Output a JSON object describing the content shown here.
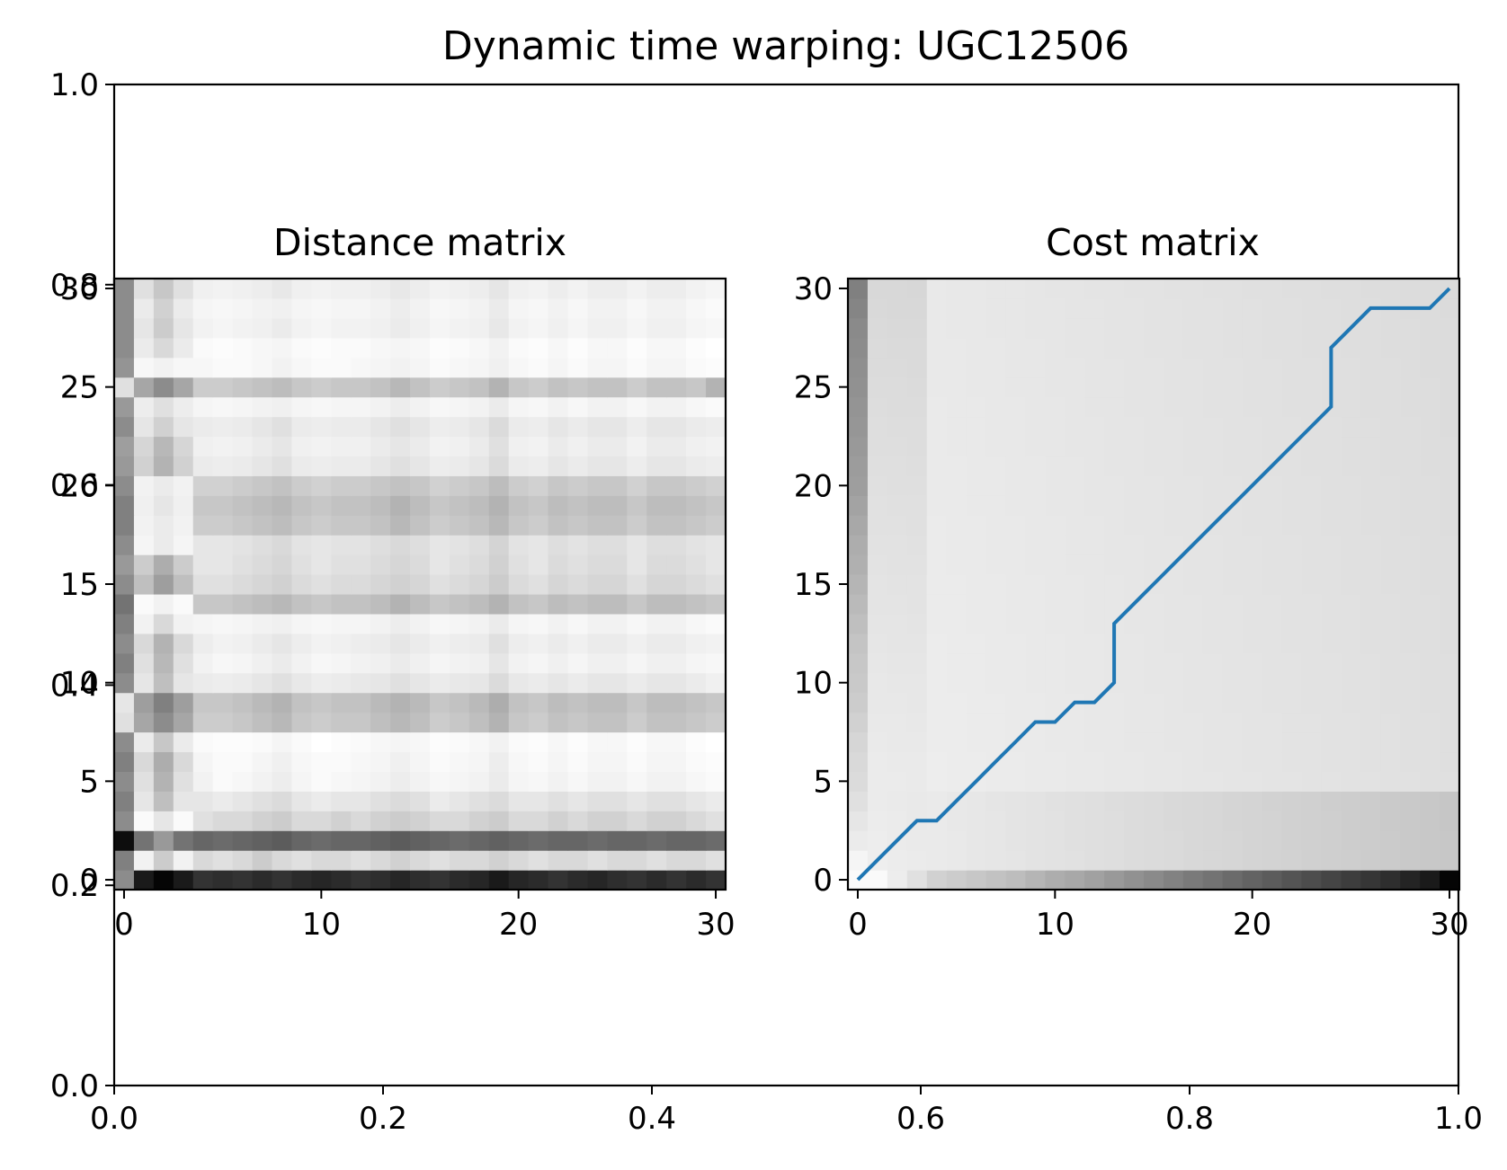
{
  "title": "Dynamic time warping: UGC12506",
  "colors": {
    "background": "#ffffff",
    "axis": "#000000",
    "path": "#1f77b4"
  },
  "chart_data": [
    {
      "id": "outer",
      "type": "line",
      "title": "Dynamic time warping: UGC12506",
      "xlim": [
        0,
        1
      ],
      "ylim": [
        0,
        1
      ],
      "xticks": [
        "0.0",
        "0.2",
        "0.4",
        "0.6",
        "0.8",
        "1.0"
      ],
      "yticks": [
        "0.0",
        "0.2",
        "0.4",
        "0.6",
        "0.8",
        "1.0"
      ],
      "series": []
    },
    {
      "id": "distance",
      "type": "heatmap",
      "title": "Distance matrix",
      "colormap": "gray",
      "size": 31,
      "xlim": [
        -0.5,
        30.5
      ],
      "ylim": [
        -0.5,
        30.5
      ],
      "xticks": [
        "0",
        "10",
        "20",
        "30"
      ],
      "yticks": [
        "0",
        "5",
        "10",
        "15",
        "20",
        "25",
        "30"
      ],
      "rows": [
        [
          0.55,
          0.1,
          0.02,
          0.1,
          0.2,
          0.18,
          0.2,
          0.17,
          0.2,
          0.17,
          0.15,
          0.17,
          0.2,
          0.18,
          0.15,
          0.18,
          0.2,
          0.17,
          0.15,
          0.1,
          0.15,
          0.17,
          0.2,
          0.17,
          0.15,
          0.18,
          0.2,
          0.17,
          0.2,
          0.17,
          0.2
        ],
        [
          0.5,
          0.95,
          0.8,
          0.95,
          0.85,
          0.88,
          0.85,
          0.8,
          0.85,
          0.88,
          0.85,
          0.85,
          0.88,
          0.85,
          0.82,
          0.85,
          0.88,
          0.85,
          0.85,
          0.82,
          0.85,
          0.88,
          0.85,
          0.85,
          0.88,
          0.85,
          0.85,
          0.88,
          0.85,
          0.85,
          0.88
        ],
        [
          0.05,
          0.45,
          0.6,
          0.45,
          0.4,
          0.42,
          0.4,
          0.38,
          0.36,
          0.4,
          0.42,
          0.4,
          0.4,
          0.38,
          0.36,
          0.38,
          0.4,
          0.42,
          0.4,
          0.38,
          0.4,
          0.42,
          0.4,
          0.4,
          0.42,
          0.4,
          0.4,
          0.42,
          0.4,
          0.4,
          0.42
        ],
        [
          0.55,
          0.98,
          0.9,
          0.98,
          0.88,
          0.85,
          0.85,
          0.82,
          0.8,
          0.85,
          0.85,
          0.82,
          0.85,
          0.82,
          0.8,
          0.82,
          0.85,
          0.85,
          0.82,
          0.8,
          0.85,
          0.85,
          0.82,
          0.85,
          0.82,
          0.82,
          0.85,
          0.82,
          0.82,
          0.85,
          0.88
        ],
        [
          0.5,
          0.9,
          0.75,
          0.9,
          0.9,
          0.92,
          0.9,
          0.88,
          0.86,
          0.9,
          0.92,
          0.9,
          0.9,
          0.88,
          0.86,
          0.88,
          0.92,
          0.9,
          0.88,
          0.86,
          0.9,
          0.9,
          0.88,
          0.9,
          0.88,
          0.88,
          0.9,
          0.88,
          0.88,
          0.9,
          0.92
        ],
        [
          0.55,
          0.88,
          0.7,
          0.88,
          0.95,
          0.98,
          0.97,
          0.95,
          0.93,
          0.96,
          0.98,
          0.97,
          0.96,
          0.95,
          0.93,
          0.95,
          0.97,
          0.96,
          0.95,
          0.92,
          0.96,
          0.97,
          0.95,
          0.97,
          0.95,
          0.95,
          0.97,
          0.95,
          0.95,
          0.97,
          0.98
        ],
        [
          0.5,
          0.85,
          0.68,
          0.85,
          0.96,
          0.98,
          0.98,
          0.96,
          0.94,
          0.97,
          0.98,
          0.98,
          0.97,
          0.96,
          0.94,
          0.96,
          0.98,
          0.97,
          0.96,
          0.93,
          0.97,
          0.98,
          0.96,
          0.98,
          0.96,
          0.96,
          0.98,
          0.96,
          0.96,
          0.98,
          0.99
        ],
        [
          0.55,
          0.92,
          0.78,
          0.92,
          0.98,
          0.99,
          0.99,
          0.98,
          0.96,
          0.98,
          1.0,
          0.99,
          0.98,
          0.97,
          0.96,
          0.97,
          0.99,
          0.98,
          0.97,
          0.95,
          0.98,
          0.99,
          0.97,
          0.99,
          0.97,
          0.97,
          0.99,
          0.97,
          0.97,
          0.99,
          1.0
        ],
        [
          0.88,
          0.65,
          0.55,
          0.65,
          0.8,
          0.8,
          0.78,
          0.75,
          0.72,
          0.78,
          0.8,
          0.78,
          0.78,
          0.75,
          0.72,
          0.75,
          0.8,
          0.78,
          0.75,
          0.7,
          0.78,
          0.8,
          0.76,
          0.78,
          0.76,
          0.76,
          0.8,
          0.76,
          0.76,
          0.78,
          0.8
        ],
        [
          0.9,
          0.62,
          0.5,
          0.62,
          0.78,
          0.78,
          0.76,
          0.73,
          0.7,
          0.76,
          0.78,
          0.76,
          0.76,
          0.73,
          0.7,
          0.73,
          0.78,
          0.76,
          0.73,
          0.68,
          0.76,
          0.78,
          0.74,
          0.76,
          0.74,
          0.74,
          0.78,
          0.74,
          0.74,
          0.76,
          0.78
        ],
        [
          0.55,
          0.9,
          0.75,
          0.9,
          0.92,
          0.93,
          0.92,
          0.9,
          0.88,
          0.91,
          0.93,
          0.92,
          0.91,
          0.9,
          0.88,
          0.9,
          0.92,
          0.91,
          0.9,
          0.86,
          0.91,
          0.92,
          0.9,
          0.92,
          0.9,
          0.9,
          0.92,
          0.9,
          0.9,
          0.92,
          0.94
        ],
        [
          0.5,
          0.88,
          0.72,
          0.88,
          0.95,
          0.97,
          0.96,
          0.94,
          0.92,
          0.95,
          0.97,
          0.96,
          0.95,
          0.94,
          0.92,
          0.94,
          0.96,
          0.95,
          0.94,
          0.9,
          0.95,
          0.96,
          0.94,
          0.96,
          0.94,
          0.94,
          0.96,
          0.94,
          0.94,
          0.96,
          0.97
        ],
        [
          0.55,
          0.85,
          0.7,
          0.85,
          0.93,
          0.95,
          0.94,
          0.92,
          0.9,
          0.93,
          0.95,
          0.94,
          0.93,
          0.92,
          0.9,
          0.92,
          0.94,
          0.93,
          0.92,
          0.88,
          0.93,
          0.94,
          0.92,
          0.94,
          0.92,
          0.92,
          0.94,
          0.92,
          0.92,
          0.94,
          0.95
        ],
        [
          0.5,
          0.95,
          0.85,
          0.95,
          0.96,
          0.97,
          0.96,
          0.95,
          0.94,
          0.96,
          0.97,
          0.96,
          0.96,
          0.95,
          0.93,
          0.95,
          0.97,
          0.96,
          0.95,
          0.92,
          0.96,
          0.97,
          0.95,
          0.97,
          0.95,
          0.95,
          0.97,
          0.95,
          0.95,
          0.97,
          0.98
        ],
        [
          0.45,
          0.98,
          0.95,
          0.98,
          0.78,
          0.78,
          0.76,
          0.74,
          0.72,
          0.76,
          0.78,
          0.76,
          0.76,
          0.74,
          0.7,
          0.74,
          0.78,
          0.76,
          0.74,
          0.7,
          0.76,
          0.78,
          0.74,
          0.76,
          0.74,
          0.74,
          0.78,
          0.74,
          0.74,
          0.76,
          0.78
        ],
        [
          0.55,
          0.75,
          0.62,
          0.75,
          0.88,
          0.88,
          0.86,
          0.84,
          0.82,
          0.86,
          0.88,
          0.86,
          0.86,
          0.84,
          0.82,
          0.84,
          0.88,
          0.86,
          0.84,
          0.8,
          0.86,
          0.88,
          0.84,
          0.86,
          0.84,
          0.84,
          0.88,
          0.84,
          0.84,
          0.86,
          0.88
        ],
        [
          0.6,
          0.8,
          0.68,
          0.8,
          0.9,
          0.9,
          0.88,
          0.86,
          0.84,
          0.88,
          0.9,
          0.88,
          0.88,
          0.86,
          0.84,
          0.86,
          0.9,
          0.88,
          0.86,
          0.82,
          0.88,
          0.9,
          0.86,
          0.88,
          0.86,
          0.86,
          0.9,
          0.86,
          0.86,
          0.88,
          0.9
        ],
        [
          0.55,
          0.96,
          0.92,
          0.96,
          0.9,
          0.9,
          0.89,
          0.87,
          0.85,
          0.89,
          0.9,
          0.89,
          0.89,
          0.87,
          0.85,
          0.87,
          0.9,
          0.89,
          0.87,
          0.83,
          0.89,
          0.9,
          0.87,
          0.89,
          0.87,
          0.87,
          0.9,
          0.87,
          0.87,
          0.89,
          0.9
        ],
        [
          0.5,
          0.95,
          0.92,
          0.95,
          0.8,
          0.8,
          0.78,
          0.76,
          0.74,
          0.78,
          0.8,
          0.78,
          0.78,
          0.76,
          0.72,
          0.76,
          0.8,
          0.78,
          0.76,
          0.72,
          0.78,
          0.8,
          0.76,
          0.78,
          0.76,
          0.76,
          0.8,
          0.76,
          0.76,
          0.78,
          0.8
        ],
        [
          0.5,
          0.94,
          0.9,
          0.94,
          0.78,
          0.78,
          0.76,
          0.74,
          0.72,
          0.76,
          0.78,
          0.76,
          0.76,
          0.74,
          0.7,
          0.74,
          0.78,
          0.76,
          0.74,
          0.7,
          0.76,
          0.78,
          0.74,
          0.76,
          0.74,
          0.74,
          0.78,
          0.74,
          0.74,
          0.76,
          0.78
        ],
        [
          0.55,
          0.95,
          0.92,
          0.95,
          0.82,
          0.82,
          0.8,
          0.78,
          0.76,
          0.8,
          0.82,
          0.8,
          0.8,
          0.78,
          0.76,
          0.78,
          0.82,
          0.8,
          0.78,
          0.74,
          0.8,
          0.82,
          0.78,
          0.8,
          0.78,
          0.78,
          0.82,
          0.78,
          0.78,
          0.8,
          0.82
        ],
        [
          0.6,
          0.82,
          0.7,
          0.82,
          0.92,
          0.93,
          0.92,
          0.9,
          0.88,
          0.92,
          0.93,
          0.92,
          0.92,
          0.9,
          0.88,
          0.9,
          0.93,
          0.92,
          0.9,
          0.86,
          0.92,
          0.93,
          0.9,
          0.92,
          0.9,
          0.9,
          0.93,
          0.9,
          0.9,
          0.92,
          0.93
        ],
        [
          0.62,
          0.84,
          0.72,
          0.84,
          0.94,
          0.95,
          0.94,
          0.92,
          0.9,
          0.94,
          0.95,
          0.94,
          0.94,
          0.92,
          0.9,
          0.92,
          0.95,
          0.94,
          0.92,
          0.88,
          0.94,
          0.95,
          0.92,
          0.94,
          0.92,
          0.92,
          0.95,
          0.92,
          0.92,
          0.94,
          0.95
        ],
        [
          0.55,
          0.9,
          0.82,
          0.9,
          0.92,
          0.93,
          0.92,
          0.9,
          0.88,
          0.92,
          0.93,
          0.92,
          0.92,
          0.9,
          0.88,
          0.9,
          0.93,
          0.92,
          0.9,
          0.86,
          0.92,
          0.93,
          0.9,
          0.92,
          0.9,
          0.9,
          0.93,
          0.9,
          0.9,
          0.92,
          0.93
        ],
        [
          0.6,
          0.93,
          0.88,
          0.93,
          0.96,
          0.97,
          0.96,
          0.95,
          0.94,
          0.96,
          0.97,
          0.96,
          0.96,
          0.95,
          0.93,
          0.95,
          0.97,
          0.96,
          0.95,
          0.92,
          0.96,
          0.97,
          0.95,
          0.97,
          0.95,
          0.95,
          0.97,
          0.95,
          0.95,
          0.97,
          0.98
        ],
        [
          0.88,
          0.65,
          0.55,
          0.65,
          0.8,
          0.8,
          0.78,
          0.76,
          0.74,
          0.78,
          0.8,
          0.78,
          0.78,
          0.76,
          0.72,
          0.76,
          0.8,
          0.78,
          0.76,
          0.7,
          0.78,
          0.8,
          0.76,
          0.78,
          0.76,
          0.76,
          0.8,
          0.76,
          0.76,
          0.78,
          0.7
        ],
        [
          0.58,
          0.97,
          0.95,
          0.97,
          0.97,
          0.98,
          0.98,
          0.97,
          0.95,
          0.97,
          0.98,
          0.98,
          0.97,
          0.96,
          0.95,
          0.96,
          0.98,
          0.97,
          0.96,
          0.94,
          0.97,
          0.98,
          0.96,
          0.98,
          0.96,
          0.96,
          0.98,
          0.96,
          0.96,
          0.98,
          0.99
        ],
        [
          0.55,
          0.92,
          0.85,
          0.92,
          0.98,
          0.99,
          0.98,
          0.97,
          0.96,
          0.98,
          0.99,
          0.98,
          0.98,
          0.97,
          0.96,
          0.97,
          0.99,
          0.98,
          0.97,
          0.95,
          0.98,
          0.99,
          0.97,
          0.99,
          0.97,
          0.97,
          0.99,
          0.97,
          0.97,
          0.99,
          1.0
        ],
        [
          0.55,
          0.9,
          0.8,
          0.9,
          0.95,
          0.96,
          0.95,
          0.94,
          0.92,
          0.95,
          0.96,
          0.95,
          0.95,
          0.94,
          0.92,
          0.94,
          0.96,
          0.95,
          0.94,
          0.91,
          0.95,
          0.96,
          0.94,
          0.96,
          0.94,
          0.94,
          0.96,
          0.94,
          0.94,
          0.96,
          0.97
        ],
        [
          0.55,
          0.92,
          0.82,
          0.92,
          0.96,
          0.97,
          0.96,
          0.95,
          0.94,
          0.96,
          0.97,
          0.96,
          0.96,
          0.95,
          0.93,
          0.95,
          0.97,
          0.96,
          0.95,
          0.92,
          0.96,
          0.97,
          0.95,
          0.97,
          0.95,
          0.95,
          0.97,
          0.95,
          0.95,
          0.97,
          0.98
        ],
        [
          0.55,
          0.88,
          0.78,
          0.88,
          0.94,
          0.95,
          0.94,
          0.93,
          0.91,
          0.94,
          0.95,
          0.94,
          0.94,
          0.93,
          0.91,
          0.93,
          0.95,
          0.94,
          0.93,
          0.9,
          0.94,
          0.95,
          0.93,
          0.95,
          0.93,
          0.93,
          0.95,
          0.93,
          0.93,
          0.95,
          0.96
        ]
      ]
    },
    {
      "id": "cost",
      "type": "heatmap",
      "title": "Cost matrix",
      "colormap": "gray",
      "size": 31,
      "xlim": [
        -0.5,
        30.5
      ],
      "ylim": [
        -0.5,
        30.5
      ],
      "xticks": [
        "0",
        "10",
        "20",
        "30"
      ],
      "yticks": [
        "0",
        "5",
        "10",
        "15",
        "20",
        "25",
        "30"
      ],
      "row0": [
        0.98,
        0.98,
        0.93,
        0.88,
        0.82,
        0.8,
        0.78,
        0.76,
        0.74,
        0.71,
        0.68,
        0.66,
        0.63,
        0.6,
        0.57,
        0.54,
        0.51,
        0.48,
        0.45,
        0.42,
        0.39,
        0.36,
        0.33,
        0.3,
        0.27,
        0.24,
        0.21,
        0.18,
        0.14,
        0.1,
        0.02
      ],
      "col0": [
        0.98,
        0.96,
        0.92,
        0.9,
        0.88,
        0.86,
        0.85,
        0.84,
        0.82,
        0.8,
        0.79,
        0.78,
        0.77,
        0.75,
        0.73,
        0.71,
        0.69,
        0.68,
        0.66,
        0.64,
        0.62,
        0.61,
        0.6,
        0.59,
        0.58,
        0.57,
        0.56,
        0.55,
        0.54,
        0.52,
        0.5
      ],
      "path": {
        "x": [
          0,
          1,
          2,
          3,
          4,
          5,
          6,
          7,
          8,
          9,
          10,
          11,
          12,
          13,
          13,
          14,
          15,
          16,
          17,
          18,
          19,
          20,
          21,
          22,
          23,
          24,
          24,
          25,
          26,
          27,
          28,
          29,
          30
        ],
        "y": [
          0,
          1,
          2,
          3,
          3,
          4,
          5,
          6,
          7,
          8,
          8,
          9,
          9,
          10,
          13,
          14,
          15,
          16,
          17,
          18,
          19,
          20,
          21,
          22,
          23,
          24,
          27,
          28,
          29,
          29,
          29,
          29,
          30
        ]
      }
    }
  ]
}
